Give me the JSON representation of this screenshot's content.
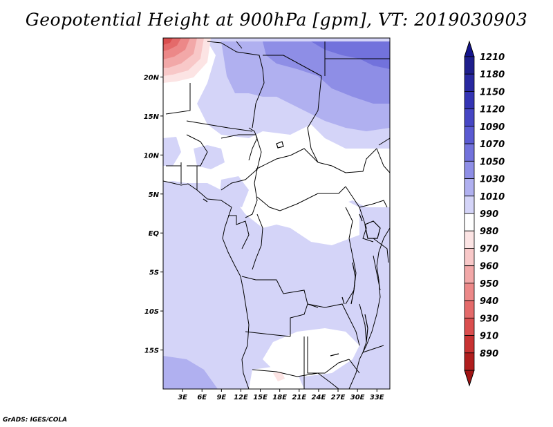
{
  "title": "Geopotential Height at 900hPa [gpm], VT: 2019030903",
  "credit": "GrADS: IGES/COLA",
  "map": {
    "lon_range": [
      0,
      35
    ],
    "lat_range": [
      -20,
      25
    ],
    "lon_ticks": [
      {
        "value": 3,
        "label": "3E"
      },
      {
        "value": 6,
        "label": "6E"
      },
      {
        "value": 9,
        "label": "9E"
      },
      {
        "value": 12,
        "label": "12E"
      },
      {
        "value": 15,
        "label": "15E"
      },
      {
        "value": 18,
        "label": "18E"
      },
      {
        "value": 21,
        "label": "21E"
      },
      {
        "value": 24,
        "label": "24E"
      },
      {
        "value": 27,
        "label": "27E"
      },
      {
        "value": 30,
        "label": "30E"
      },
      {
        "value": 33,
        "label": "33E"
      }
    ],
    "lat_ticks": [
      {
        "value": 20,
        "label": "20N"
      },
      {
        "value": 15,
        "label": "15N"
      },
      {
        "value": 10,
        "label": "10N"
      },
      {
        "value": 5,
        "label": "5N"
      },
      {
        "value": 0,
        "label": "EQ"
      },
      {
        "value": -5,
        "label": "5S"
      },
      {
        "value": -10,
        "label": "10S"
      },
      {
        "value": -15,
        "label": "15S"
      }
    ]
  },
  "colorbar": {
    "levels": [
      {
        "label": "1210",
        "color": "#1e1e8c"
      },
      {
        "label": "1180",
        "color": "#2828a0"
      },
      {
        "label": "1150",
        "color": "#3434b4"
      },
      {
        "label": "1120",
        "color": "#4646c4"
      },
      {
        "label": "1090",
        "color": "#5a5ad2"
      },
      {
        "label": "1070",
        "color": "#7272dc"
      },
      {
        "label": "1050",
        "color": "#8e8ee6"
      },
      {
        "label": "1030",
        "color": "#b0b0f0"
      },
      {
        "label": "1010",
        "color": "#d4d4f8"
      },
      {
        "label": "990",
        "color": "#ffffff"
      },
      {
        "label": "980",
        "color": "#fce4e4"
      },
      {
        "label": "970",
        "color": "#f8c8c8"
      },
      {
        "label": "960",
        "color": "#f2a8a8"
      },
      {
        "label": "950",
        "color": "#ec8888"
      },
      {
        "label": "940",
        "color": "#e46a6a"
      },
      {
        "label": "930",
        "color": "#da4e4e"
      },
      {
        "label": "910",
        "color": "#c83232"
      },
      {
        "label": "890",
        "color": "#b01e1e"
      }
    ],
    "top_color": "#14148c",
    "bottom_color": "#a01414"
  }
}
